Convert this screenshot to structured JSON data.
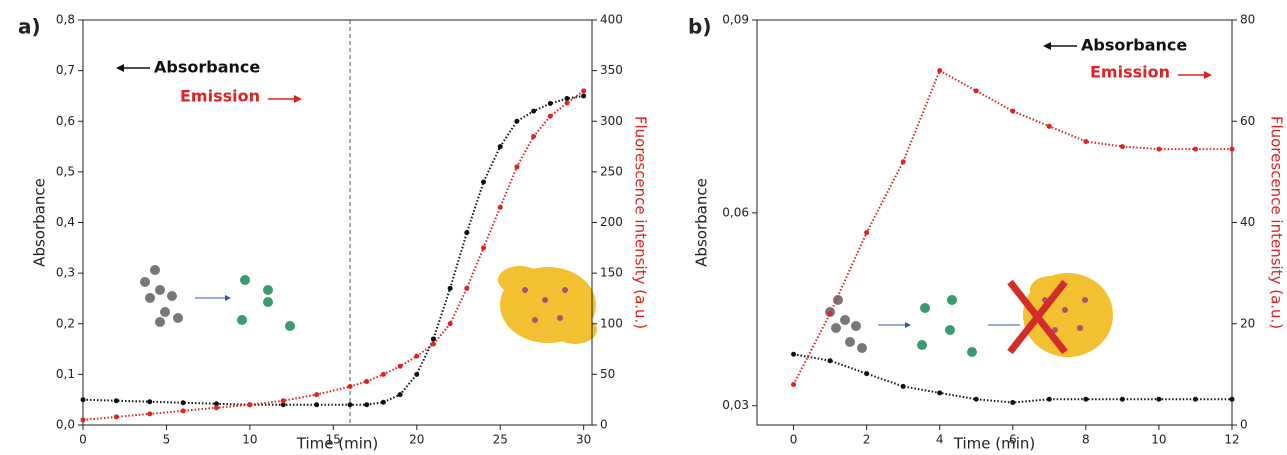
{
  "chart_data": [
    {
      "type": "line",
      "panel": "a)",
      "x_label": "Time (min)",
      "y_label": "Absorbance",
      "y2_label": "Fluorescence intensity (a.u.)",
      "x": [
        0,
        2,
        4,
        6,
        8,
        10,
        12,
        14,
        16,
        17,
        18,
        19,
        20,
        21,
        22,
        23,
        24,
        25,
        26,
        27,
        28,
        29,
        30
      ],
      "series": [
        {
          "name": "Absorbance",
          "color": "#111111",
          "values": [
            0.05,
            0.048,
            0.046,
            0.044,
            0.042,
            0.04,
            0.04,
            0.04,
            0.04,
            0.04,
            0.045,
            0.06,
            0.1,
            0.17,
            0.27,
            0.38,
            0.48,
            0.55,
            0.6,
            0.62,
            0.635,
            0.645,
            0.65
          ]
        },
        {
          "name": "Emission",
          "color": "#e02222",
          "axis": "y2",
          "values": [
            5,
            8,
            11,
            14,
            17,
            20,
            24,
            30,
            38,
            43,
            50,
            58,
            68,
            80,
            100,
            135,
            175,
            215,
            255,
            285,
            305,
            318,
            330
          ]
        }
      ],
      "reference_line": 16,
      "xlim": [
        0,
        30.5
      ],
      "xticks": [
        0,
        5,
        10,
        15,
        20,
        25,
        30
      ],
      "ylim": [
        0,
        0.8
      ],
      "yticks": [
        {
          "value": 0,
          "label": "0,0"
        },
        {
          "value": 0.1,
          "label": "0,1"
        },
        {
          "value": 0.2,
          "label": "0,2"
        },
        {
          "value": 0.3,
          "label": "0,3"
        },
        {
          "value": 0.4,
          "label": "0,4"
        },
        {
          "value": 0.5,
          "label": "0,5"
        },
        {
          "value": 0.6,
          "label": "0,6"
        },
        {
          "value": 0.7,
          "label": "0,7"
        },
        {
          "value": 0.8,
          "label": "0,8"
        }
      ],
      "y2lim": [
        0,
        400
      ],
      "y2ticks": [
        0,
        50,
        100,
        150,
        200,
        250,
        300,
        350,
        400
      ]
    },
    {
      "type": "line",
      "panel": "b)",
      "x_label": "Time (min)",
      "y_label": "Absorbance",
      "y2_label": "Fluorescence intensity (a.u.)",
      "x": [
        0,
        1,
        2,
        3,
        4,
        5,
        6,
        7,
        8,
        9,
        10,
        11,
        12
      ],
      "series": [
        {
          "name": "Absorbance",
          "color": "#111111",
          "values": [
            0.038,
            0.037,
            0.035,
            0.033,
            0.032,
            0.031,
            0.0305,
            0.031,
            0.031,
            0.031,
            0.031,
            0.031,
            0.031
          ]
        },
        {
          "name": "Emission",
          "color": "#e02222",
          "axis": "y2",
          "values": [
            8,
            22,
            38,
            52,
            70,
            66,
            62,
            59,
            56,
            55,
            54.5,
            54.5,
            54.5
          ]
        }
      ],
      "xlim": [
        -1,
        12
      ],
      "xticks": [
        0,
        2,
        4,
        6,
        8,
        10,
        12
      ],
      "ylim": [
        0.027,
        0.09
      ],
      "yticks": [
        {
          "value": 0.03,
          "label": "0,03"
        },
        {
          "value": 0.06,
          "label": "0,06"
        },
        {
          "value": 0.09,
          "label": "0,09"
        }
      ],
      "y2lim": [
        0,
        80
      ],
      "y2ticks": [
        0,
        20,
        40,
        60,
        80
      ]
    }
  ]
}
